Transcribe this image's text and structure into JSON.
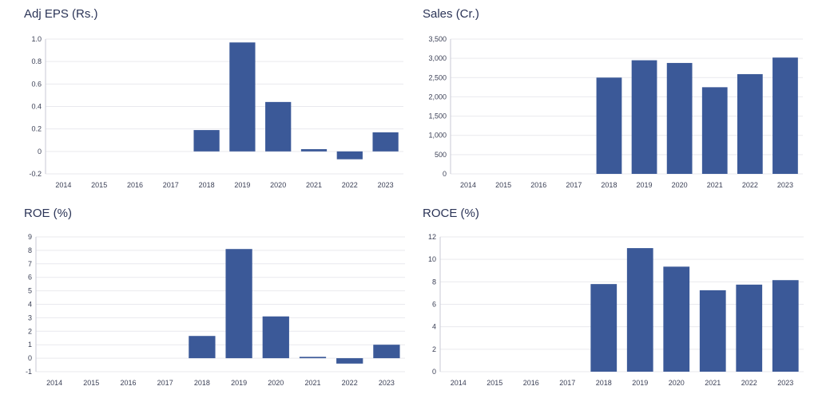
{
  "chart_data": [
    {
      "type": "bar",
      "title": "Adj EPS (Rs.)",
      "categories": [
        "2014",
        "2015",
        "2016",
        "2017",
        "2018",
        "2019",
        "2020",
        "2021",
        "2022",
        "2023"
      ],
      "values": [
        null,
        null,
        null,
        null,
        0.19,
        0.97,
        0.44,
        0.02,
        -0.07,
        0.17
      ],
      "ylim": [
        -0.2,
        1.0
      ],
      "yticks": [
        -0.2,
        0,
        0.2,
        0.4,
        0.6,
        0.8,
        1.0
      ],
      "ytick_labels": [
        "-0.2",
        "0",
        "0.2",
        "0.4",
        "0.6",
        "0.8",
        "1.0"
      ],
      "bar_color": "#3b5998",
      "grid": true
    },
    {
      "type": "bar",
      "title": "Sales (Cr.)",
      "categories": [
        "2014",
        "2015",
        "2016",
        "2017",
        "2018",
        "2019",
        "2020",
        "2021",
        "2022",
        "2023"
      ],
      "values": [
        null,
        null,
        null,
        null,
        2500,
        2950,
        2880,
        2250,
        2590,
        3020
      ],
      "ylim": [
        0,
        3500
      ],
      "yticks": [
        0,
        500,
        1000,
        1500,
        2000,
        2500,
        3000,
        3500
      ],
      "ytick_labels": [
        "0",
        "500",
        "1,000",
        "1,500",
        "2,000",
        "2,500",
        "3,000",
        "3,500"
      ],
      "bar_color": "#3b5998",
      "grid": true
    },
    {
      "type": "bar",
      "title": "ROE (%)",
      "categories": [
        "2014",
        "2015",
        "2016",
        "2017",
        "2018",
        "2019",
        "2020",
        "2021",
        "2022",
        "2023"
      ],
      "values": [
        null,
        null,
        null,
        null,
        1.65,
        8.1,
        3.1,
        0.1,
        -0.4,
        1.0
      ],
      "ylim": [
        -1,
        9
      ],
      "yticks": [
        -1,
        0,
        1,
        2,
        3,
        4,
        5,
        6,
        7,
        8,
        9
      ],
      "ytick_labels": [
        "-1",
        "0",
        "1",
        "2",
        "3",
        "4",
        "5",
        "6",
        "7",
        "8",
        "9"
      ],
      "bar_color": "#3b5998",
      "grid": true
    },
    {
      "type": "bar",
      "title": "ROCE (%)",
      "categories": [
        "2014",
        "2015",
        "2016",
        "2017",
        "2018",
        "2019",
        "2020",
        "2021",
        "2022",
        "2023"
      ],
      "values": [
        null,
        null,
        null,
        null,
        7.8,
        11.0,
        9.35,
        7.25,
        7.75,
        8.15
      ],
      "ylim": [
        0,
        12
      ],
      "yticks": [
        0,
        2,
        4,
        6,
        8,
        10,
        12
      ],
      "ytick_labels": [
        "0",
        "2",
        "4",
        "6",
        "8",
        "10",
        "12"
      ],
      "bar_color": "#3b5998",
      "grid": true
    }
  ]
}
